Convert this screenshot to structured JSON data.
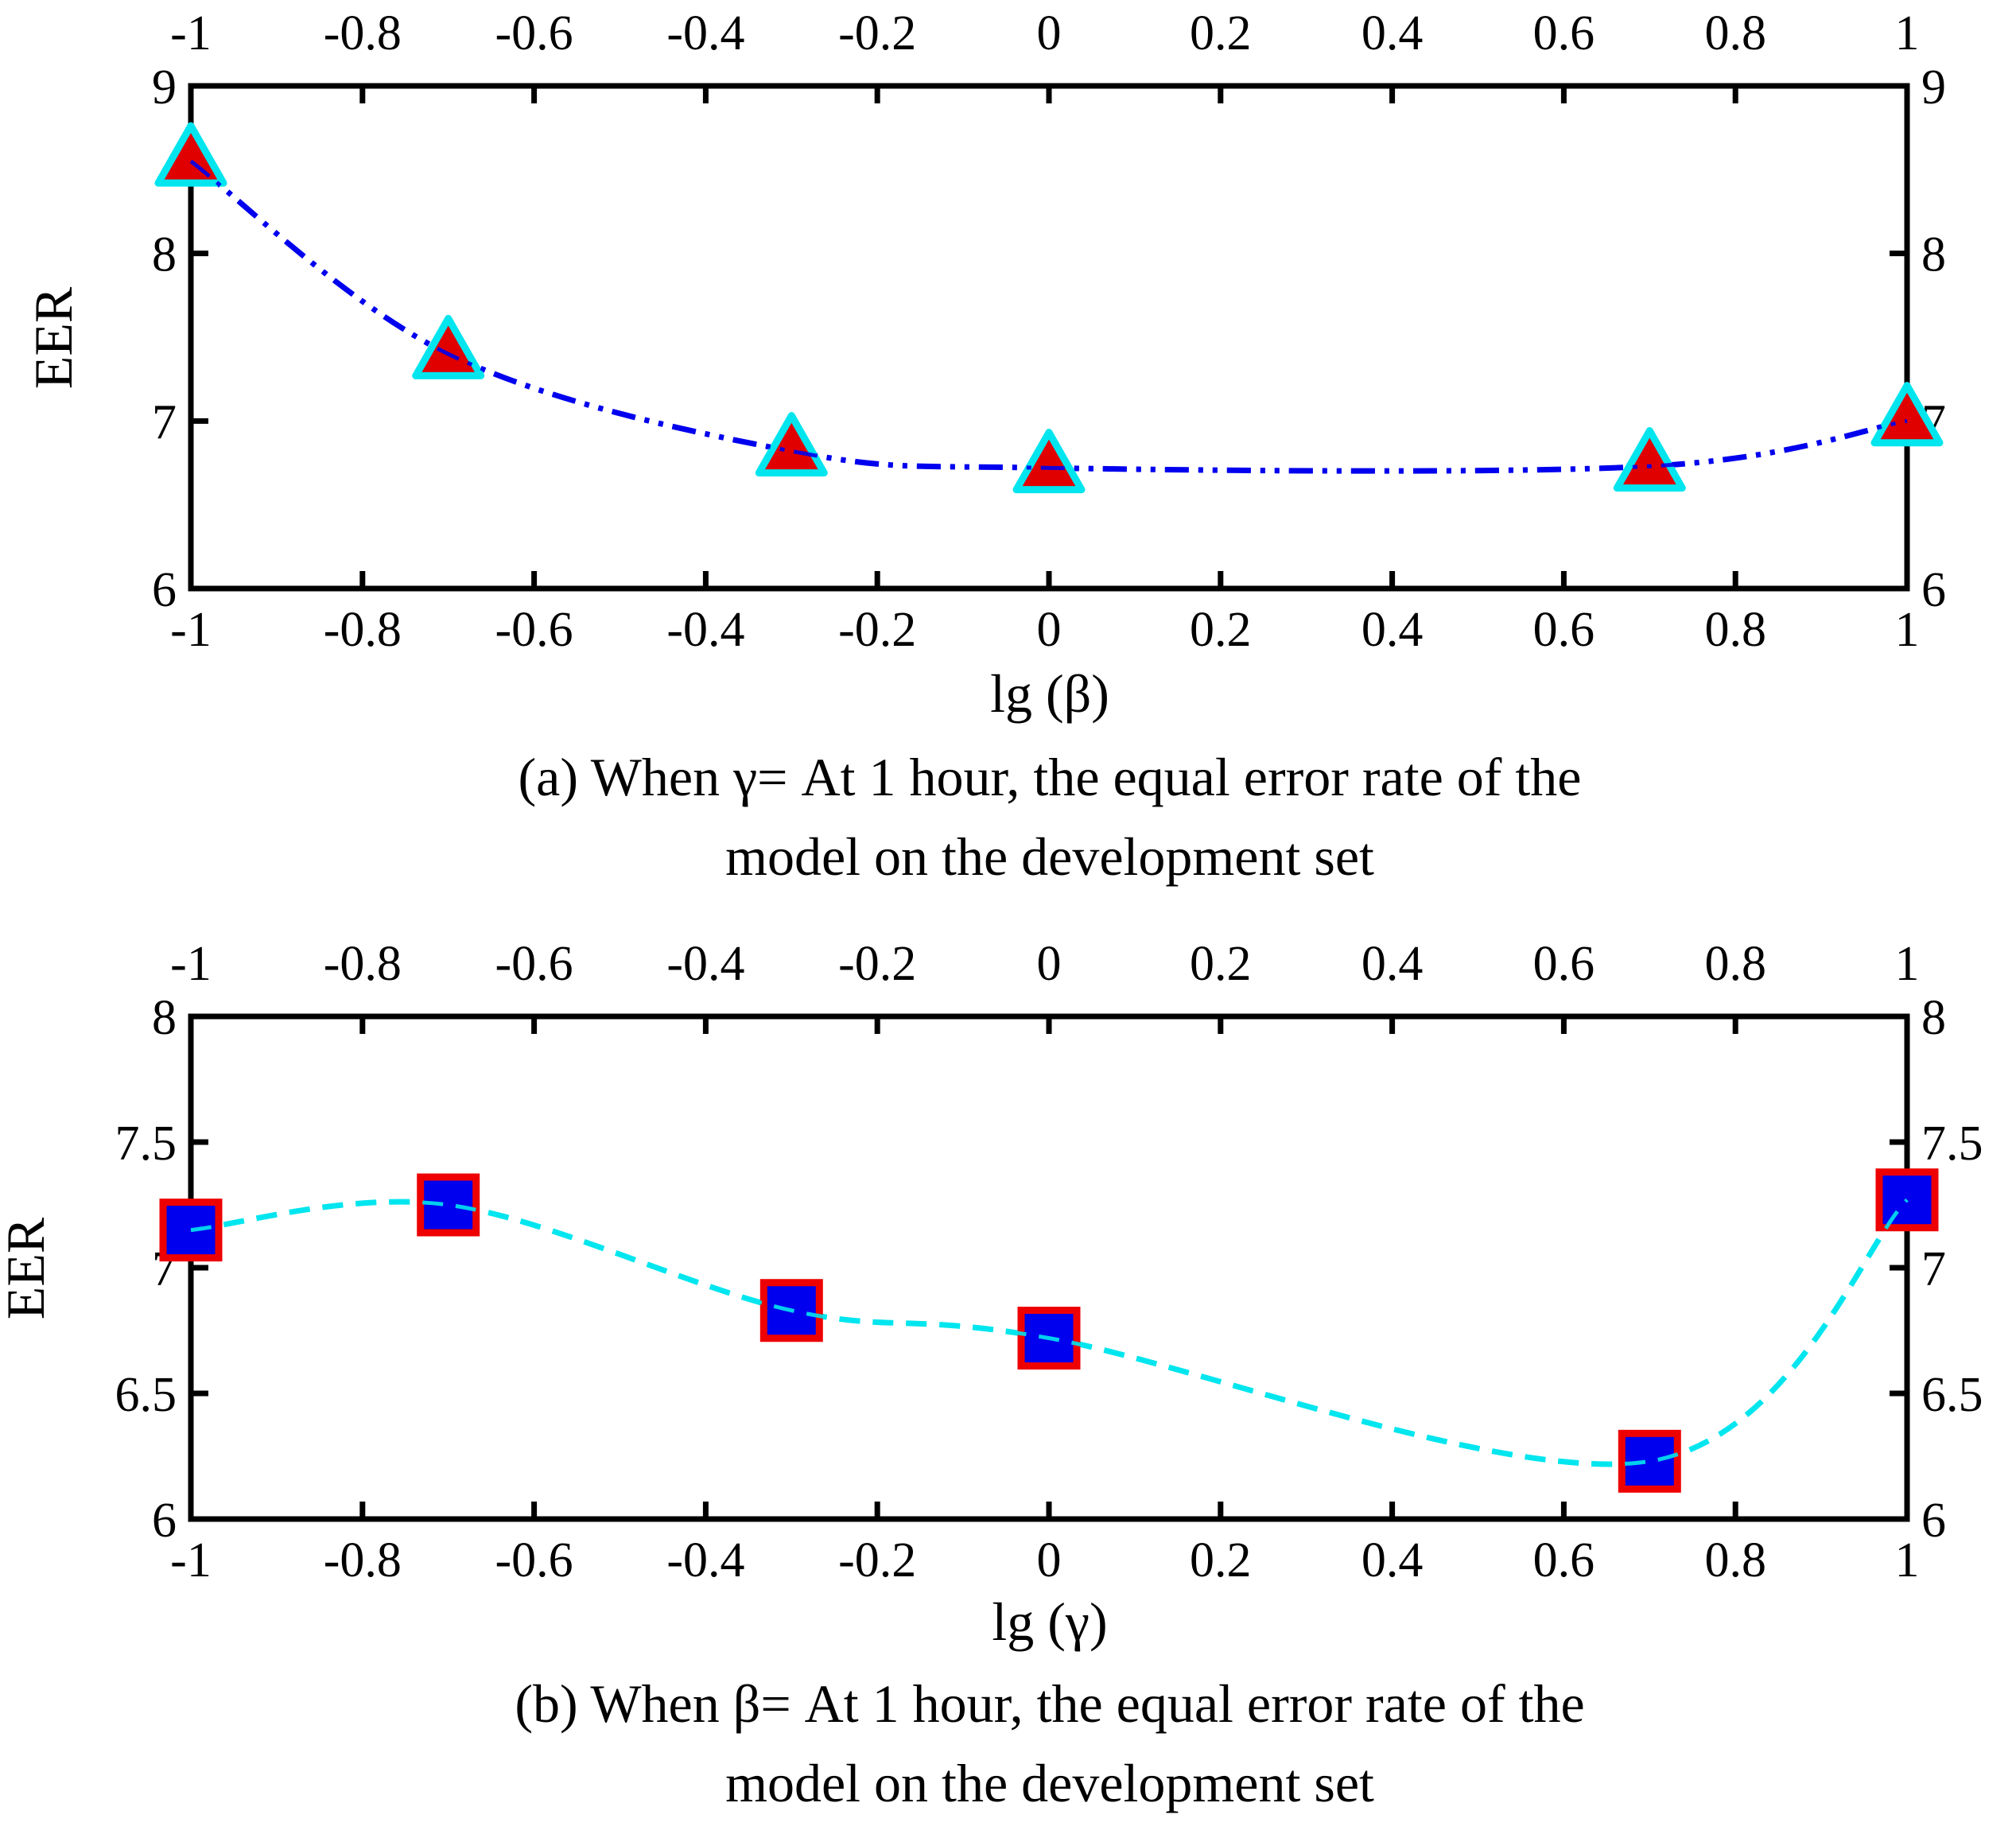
{
  "chart_data": [
    {
      "type": "line",
      "xlabel": "lg (β)",
      "ylabel": "EER",
      "xlim": [
        -1,
        1
      ],
      "ylim": [
        6,
        9
      ],
      "xticks": [
        "-1",
        "-0.8",
        "-0.6",
        "-0.4",
        "-0.2",
        "0",
        "0.2",
        "0.4",
        "0.6",
        "0.8",
        "1"
      ],
      "yticks": [
        "6",
        "7",
        "8",
        "9"
      ],
      "caption_lines": [
        "(a) When γ= At 1 hour, the equal error rate of the",
        "model on the development set"
      ],
      "marker": "triangle",
      "marker_fill": "#e00000",
      "marker_edge": "#00e5ee",
      "line_color": "#0000ee",
      "line_style": "dash-dot-dot",
      "grid": false,
      "series": [
        {
          "x": [
            -1,
            -0.7,
            -0.3,
            0,
            0.7,
            1
          ],
          "values": [
            8.55,
            7.4,
            6.82,
            6.72,
            6.73,
            7.0
          ]
        }
      ]
    },
    {
      "type": "line",
      "xlabel": "lg (γ)",
      "ylabel": "EER",
      "xlim": [
        -1,
        1
      ],
      "ylim": [
        6,
        8
      ],
      "xticks": [
        "-1",
        "-0.8",
        "-0.6",
        "-0.4",
        "-0.2",
        "0",
        "0.2",
        "0.4",
        "0.6",
        "0.8",
        "1"
      ],
      "yticks": [
        "6",
        "6.5",
        "7",
        "7.5",
        "8"
      ],
      "caption_lines": [
        "(b) When β= At 1 hour, the equal error rate of the",
        "model on the development set"
      ],
      "marker": "square",
      "marker_fill": "#0000ee",
      "marker_edge": "#ee0000",
      "line_color": "#00e5ee",
      "line_style": "dashed",
      "grid": false,
      "series": [
        {
          "x": [
            -1,
            -0.7,
            -0.3,
            0,
            0.7,
            1
          ],
          "values": [
            7.15,
            7.25,
            6.83,
            6.72,
            6.23,
            7.27
          ]
        }
      ]
    }
  ]
}
